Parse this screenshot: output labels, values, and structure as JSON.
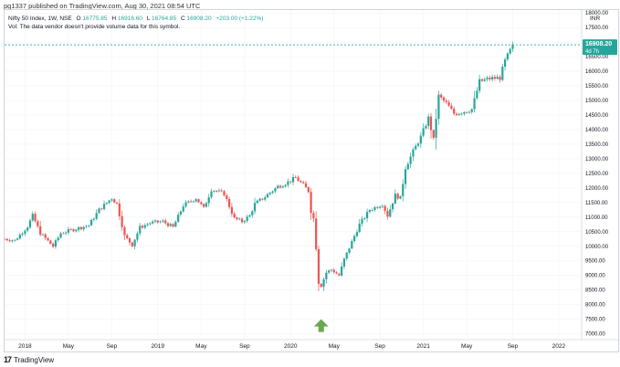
{
  "header": {
    "published": "pg1337 published on TradingView.com, Aug 30, 2021 08:54 UTC"
  },
  "legend": {
    "symbol_line": "Nifty 50 Index, 1W, NSE",
    "o_label": "O",
    "o": "16775.85",
    "h_label": "H",
    "h": "16916.60",
    "l_label": "L",
    "l": "16764.85",
    "c_label": "C",
    "c": "16908.20",
    "change": "+203.00 (+1.22%)",
    "vol_note": "Vol: The data vendor doesn't provide volume data for this symbol."
  },
  "price_badge": {
    "price": "16908.20",
    "countdown": "4d 7h"
  },
  "footer": {
    "brand": "TradingView",
    "logo_glyph": "17"
  },
  "colors": {
    "up": "#26a69a",
    "down": "#ef5350",
    "arrow": "#6aa84f",
    "price_line": "#26a69a"
  },
  "chart_data": {
    "type": "candlestick",
    "interval": "1W",
    "y_axis": {
      "range": [
        6800,
        18100
      ],
      "currency": "INR",
      "ticks": [
        7000,
        7500,
        8000,
        8500,
        9000,
        9500,
        10000,
        10500,
        11000,
        11500,
        12000,
        12500,
        13000,
        13500,
        14000,
        14500,
        15000,
        15500,
        16000,
        16500,
        17000,
        17500,
        18000
      ],
      "tick_labels": [
        "7000.00",
        "7500.00",
        "8000.00",
        "8500.00",
        "9000.00",
        "9500.00",
        "10000.00",
        "10500.00",
        "11000.00",
        "11500.00",
        "12000.00",
        "12500.00",
        "13000.00",
        "13500.00",
        "14000.00",
        "14500.00",
        "15000.00",
        "15500.00",
        "16000.00",
        "16500.00",
        "17000.00",
        "17500.00",
        "18000.00"
      ]
    },
    "x_axis": {
      "range": [
        "2017-11-10",
        "2022-03-11"
      ],
      "ticks": [
        {
          "date": "2018-01-05",
          "label": "2018"
        },
        {
          "date": "2018-05-04",
          "label": "May"
        },
        {
          "date": "2018-08-31",
          "label": "Sep"
        },
        {
          "date": "2019-01-04",
          "label": "2019"
        },
        {
          "date": "2019-05-03",
          "label": "May"
        },
        {
          "date": "2019-08-30",
          "label": "Sep"
        },
        {
          "date": "2020-01-03",
          "label": "2020"
        },
        {
          "date": "2020-05-01",
          "label": "May"
        },
        {
          "date": "2020-09-04",
          "label": "Sep"
        },
        {
          "date": "2021-01-01",
          "label": "2021"
        },
        {
          "date": "2021-04-30",
          "label": "May"
        },
        {
          "date": "2021-09-03",
          "label": "Sep"
        },
        {
          "date": "2022-01-07",
          "label": "2022"
        }
      ]
    },
    "last_price": 16908.2,
    "annotation": {
      "type": "arrow-up",
      "date": "2020-03-27",
      "price": 7500
    },
    "anchors": [
      [
        "2017-11-10",
        10250
      ],
      [
        "2017-12-08",
        10200
      ],
      [
        "2018-01-12",
        10680
      ],
      [
        "2018-01-26",
        11050
      ],
      [
        "2018-02-16",
        10450
      ],
      [
        "2018-03-23",
        10000
      ],
      [
        "2018-04-13",
        10450
      ],
      [
        "2018-05-25",
        10600
      ],
      [
        "2018-06-29",
        10720
      ],
      [
        "2018-07-27",
        11250
      ],
      [
        "2018-08-31",
        11650
      ],
      [
        "2018-09-14",
        11450
      ],
      [
        "2018-10-05",
        10350
      ],
      [
        "2018-10-26",
        10050
      ],
      [
        "2018-11-16",
        10650
      ],
      [
        "2018-12-14",
        10800
      ],
      [
        "2019-01-18",
        10850
      ],
      [
        "2019-02-15",
        10650
      ],
      [
        "2019-03-15",
        11400
      ],
      [
        "2019-04-19",
        11650
      ],
      [
        "2019-05-10",
        11300
      ],
      [
        "2019-05-31",
        11950
      ],
      [
        "2019-07-05",
        11800
      ],
      [
        "2019-08-02",
        10950
      ],
      [
        "2019-08-23",
        10850
      ],
      [
        "2019-09-13",
        11050
      ],
      [
        "2019-09-27",
        11450
      ],
      [
        "2019-10-25",
        11700
      ],
      [
        "2019-11-29",
        12050
      ],
      [
        "2019-12-27",
        12200
      ],
      [
        "2020-01-17",
        12350
      ],
      [
        "2020-02-07",
        12100
      ],
      [
        "2020-02-21",
        11900
      ],
      [
        "2020-02-28",
        11200
      ],
      [
        "2020-03-06",
        10950
      ],
      [
        "2020-03-13",
        9950
      ],
      [
        "2020-03-20",
        8750
      ],
      [
        "2020-03-27",
        8650
      ],
      [
        "2020-04-10",
        9100
      ],
      [
        "2020-04-24",
        9200
      ],
      [
        "2020-05-15",
        9000
      ],
      [
        "2020-05-29",
        9550
      ],
      [
        "2020-06-12",
        9950
      ],
      [
        "2020-07-10",
        10750
      ],
      [
        "2020-08-07",
        11250
      ],
      [
        "2020-09-11",
        11450
      ],
      [
        "2020-09-25",
        11050
      ],
      [
        "2020-10-16",
        11750
      ],
      [
        "2020-10-30",
        11650
      ],
      [
        "2020-11-13",
        12700
      ],
      [
        "2020-12-04",
        13250
      ],
      [
        "2020-12-25",
        13750
      ],
      [
        "2021-01-15",
        14400
      ],
      [
        "2021-01-29",
        13650
      ],
      [
        "2021-02-12",
        15150
      ],
      [
        "2021-03-05",
        14900
      ],
      [
        "2021-03-26",
        14550
      ],
      [
        "2021-04-16",
        14600
      ],
      [
        "2021-04-30",
        14650
      ],
      [
        "2021-05-14",
        14700
      ],
      [
        "2021-06-04",
        15650
      ],
      [
        "2021-07-02",
        15750
      ],
      [
        "2021-07-30",
        15780
      ],
      [
        "2021-08-13",
        16350
      ],
      [
        "2021-08-27",
        16705
      ],
      [
        "2021-09-03",
        16908
      ]
    ]
  }
}
